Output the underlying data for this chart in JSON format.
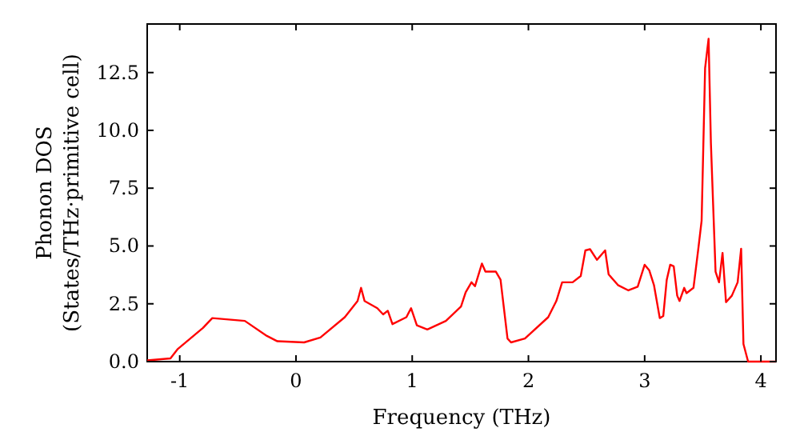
{
  "chart_data": {
    "type": "line",
    "xlabel": "Frequency (THz)",
    "ylabel": "Phonon DOS\n(States/THz·primitive cell)",
    "xlim": [
      -1.28,
      4.13
    ],
    "ylim": [
      0,
      14.6
    ],
    "xticks": [
      -1,
      0,
      1,
      2,
      3,
      4
    ],
    "yticks": [
      {
        "value": 0,
        "label": "0.0"
      },
      2.5,
      {
        "value": 5,
        "label": "5.0"
      },
      {
        "value": 7.5,
        "label": "7.5"
      },
      {
        "value": 10,
        "label": "10.0"
      },
      12.5
    ],
    "grid": false,
    "marker": "none",
    "line_style": "solid",
    "series": [
      {
        "color": "#ff0000",
        "x": [
          -1.28,
          -1.08,
          -1.02,
          -0.8,
          -0.72,
          -0.44,
          -0.25,
          -0.16,
          0.07,
          0.21,
          0.42,
          0.53,
          0.56,
          0.59,
          0.7,
          0.75,
          0.79,
          0.83,
          0.95,
          0.99,
          1.04,
          1.13,
          1.29,
          1.42,
          1.46,
          1.51,
          1.54,
          1.6,
          1.63,
          1.72,
          1.76,
          1.82,
          1.85,
          1.97,
          2.17,
          2.24,
          2.29,
          2.38,
          2.45,
          2.49,
          2.53,
          2.59,
          2.66,
          2.69,
          2.77,
          2.86,
          2.94,
          3.0,
          3.04,
          3.08,
          3.13,
          3.16,
          3.19,
          3.22,
          3.25,
          3.28,
          3.3,
          3.34,
          3.36,
          3.42,
          3.46,
          3.49,
          3.52,
          3.55,
          3.57,
          3.61,
          3.64,
          3.67,
          3.7,
          3.75,
          3.8,
          3.83,
          3.85,
          3.89,
          4.13
        ],
        "values": [
          0.05,
          0.14,
          0.53,
          1.46,
          1.88,
          1.76,
          1.11,
          0.88,
          0.83,
          1.04,
          1.92,
          2.62,
          3.19,
          2.62,
          2.31,
          2.04,
          2.2,
          1.62,
          1.92,
          2.31,
          1.57,
          1.39,
          1.76,
          2.38,
          3.0,
          3.43,
          3.26,
          4.24,
          3.89,
          3.89,
          3.54,
          1.0,
          0.83,
          1.0,
          1.92,
          2.62,
          3.43,
          3.43,
          3.7,
          4.81,
          4.86,
          4.4,
          4.81,
          3.77,
          3.31,
          3.08,
          3.24,
          4.19,
          3.94,
          3.31,
          1.88,
          1.97,
          3.54,
          4.19,
          4.12,
          2.85,
          2.62,
          3.19,
          2.96,
          3.19,
          4.81,
          6.09,
          12.69,
          13.96,
          9.44,
          3.89,
          3.43,
          4.7,
          2.57,
          2.85,
          3.43,
          4.88,
          0.76,
          0,
          0
        ]
      }
    ]
  }
}
